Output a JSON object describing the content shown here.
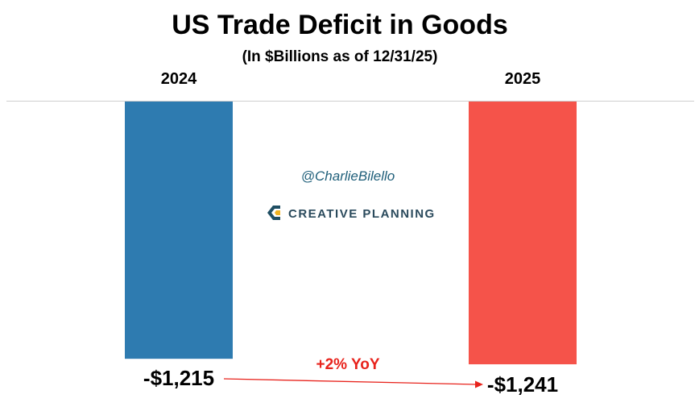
{
  "chart_data": {
    "type": "bar",
    "title": "US Trade Deficit in Goods",
    "subtitle": "(In $Billions as of 12/31/25)",
    "categories": [
      "2024",
      "2025"
    ],
    "values": [
      -1215,
      -1241
    ],
    "value_labels": [
      "-$1,215",
      "-$1,241"
    ],
    "colors": [
      "#2e7bb0",
      "#f5534a"
    ],
    "ylim": [
      -1241,
      0
    ],
    "grid": false,
    "annotation": {
      "text": "+2% YoY",
      "color": "#e8231c"
    }
  },
  "watermark": {
    "handle": "@CharlieBilello",
    "brand": "CREATIVE PLANNING"
  }
}
